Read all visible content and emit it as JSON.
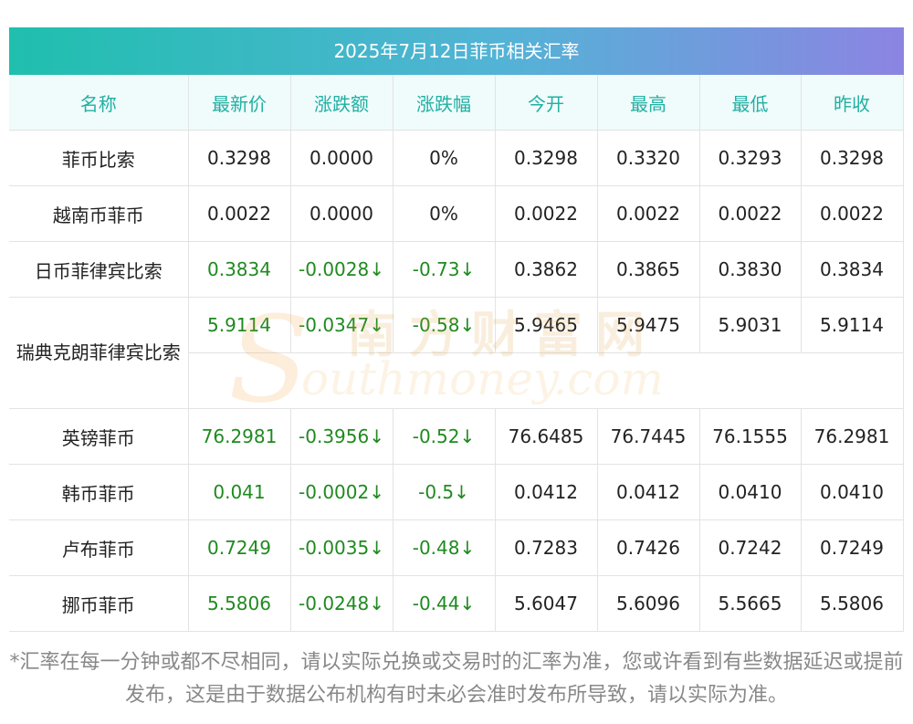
{
  "title": "2025年7月12日菲币相关汇率",
  "columns": [
    "名称",
    "最新价",
    "涨跌额",
    "涨跌幅",
    "今开",
    "最高",
    "最低",
    "昨收"
  ],
  "rows": [
    {
      "name": "菲币比索",
      "latest": "0.3298",
      "change": "0.0000",
      "pct": "0%",
      "open": "0.3298",
      "high": "0.3320",
      "low": "0.3293",
      "prev": "0.3298",
      "trend": "neutral"
    },
    {
      "name": "越南币菲币",
      "latest": "0.0022",
      "change": "0.0000",
      "pct": "0%",
      "open": "0.0022",
      "high": "0.0022",
      "low": "0.0022",
      "prev": "0.0022",
      "trend": "neutral"
    },
    {
      "name": "日币菲律宾比索",
      "latest": "0.3834",
      "change": "-0.0028↓",
      "pct": "-0.73↓",
      "open": "0.3862",
      "high": "0.3865",
      "low": "0.3830",
      "prev": "0.3834",
      "trend": "down"
    },
    {
      "name": "瑞典克朗菲律宾比索",
      "latest": "5.9114",
      "change": "-0.0347↓",
      "pct": "-0.58↓",
      "open": "5.9465",
      "high": "5.9475",
      "low": "5.9031",
      "prev": "5.9114",
      "trend": "down"
    },
    {
      "name": "英镑菲币",
      "latest": "76.2981",
      "change": "-0.3956↓",
      "pct": "-0.52↓",
      "open": "76.6485",
      "high": "76.7445",
      "low": "76.1555",
      "prev": "76.2981",
      "trend": "down"
    },
    {
      "name": "韩币菲币",
      "latest": "0.041",
      "change": "-0.0002↓",
      "pct": "-0.5↓",
      "open": "0.0412",
      "high": "0.0412",
      "low": "0.0410",
      "prev": "0.0410",
      "trend": "down"
    },
    {
      "name": "卢布菲币",
      "latest": "0.7249",
      "change": "-0.0035↓",
      "pct": "-0.48↓",
      "open": "0.7283",
      "high": "0.7426",
      "low": "0.7242",
      "prev": "0.7249",
      "trend": "down"
    },
    {
      "name": "挪币菲币",
      "latest": "5.5806",
      "change": "-0.0248↓",
      "pct": "-0.44↓",
      "open": "5.6047",
      "high": "5.6096",
      "low": "5.5665",
      "prev": "5.5806",
      "trend": "down"
    }
  ],
  "watermark": {
    "cn": "南方财富网",
    "en": "outhmoney.com",
    "s": "S"
  },
  "footnote": "*汇率在每一分钟或都不尽相同，请以实际兑换或交易时的汇率为准，您或许看到有些数据延迟或提前发布，这是由于数据公布机构有时未必会准时发布所导致，请以实际为准。",
  "colors": {
    "header_text": "#21b0a3",
    "down": "#1f8a1f",
    "gradient_start": "#1fbfae",
    "gradient_end": "#8c84e2"
  }
}
